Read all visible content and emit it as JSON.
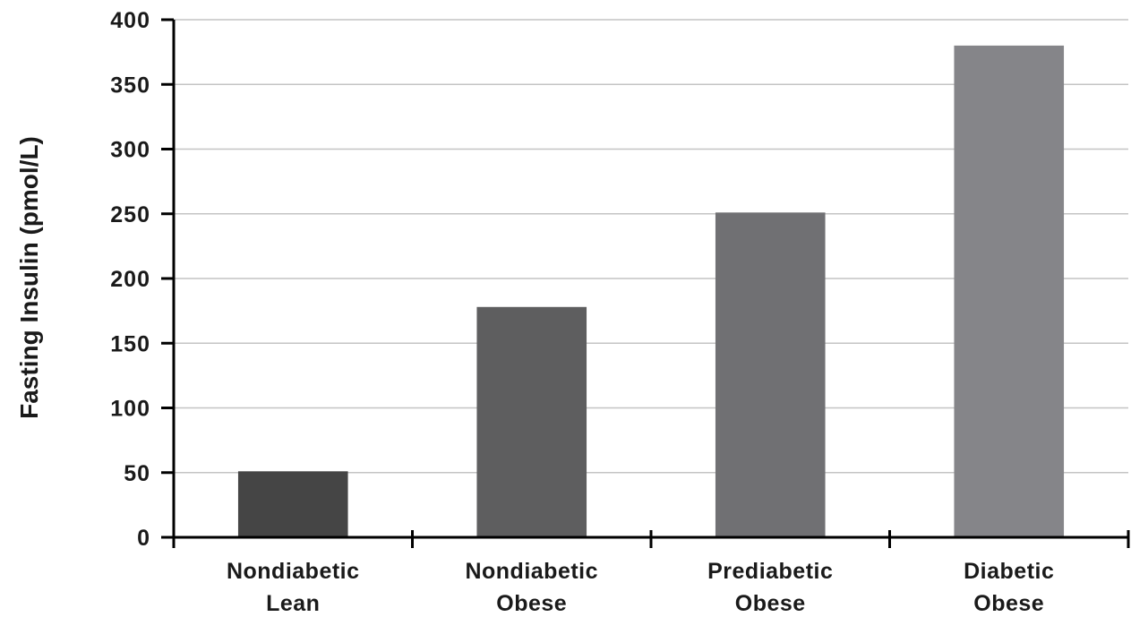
{
  "chart_data": {
    "type": "bar",
    "title": "",
    "xlabel": "",
    "ylabel": "Fasting Insulin (pmol/L)",
    "ylim": [
      0,
      400
    ],
    "yticks": [
      0,
      50,
      100,
      150,
      200,
      250,
      300,
      350,
      400
    ],
    "grid": true,
    "categories": [
      [
        "Nondiabetic",
        "Lean"
      ],
      [
        "Nondiabetic",
        "Obese"
      ],
      [
        "Prediabetic",
        "Obese"
      ],
      [
        "Diabetic",
        "Obese"
      ]
    ],
    "values": [
      51,
      178,
      251,
      380
    ],
    "colors": [
      "#454545",
      "#5e5e5f",
      "#707073",
      "#858589"
    ]
  }
}
